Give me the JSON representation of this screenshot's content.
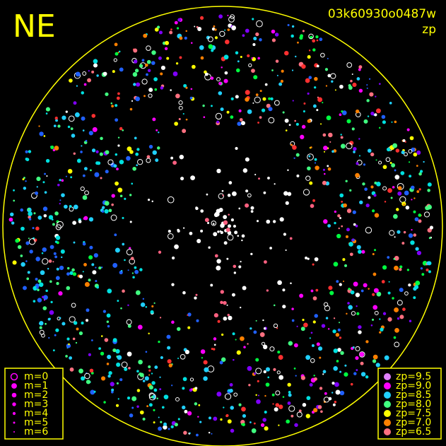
{
  "header": {
    "direction": "NE",
    "frame_id": "03k60930o0487w",
    "mode": "zp"
  },
  "legend_magnitude": {
    "labels": [
      "m=0",
      "m=1",
      "m=2",
      "m=3",
      "m=4",
      "m=5",
      "m=6"
    ],
    "color": "#ff00ff"
  },
  "legend_zp": {
    "items": [
      {
        "label": "zp=9.5",
        "color": "#e080ff"
      },
      {
        "label": "zp=9.0",
        "color": "#ff00ff"
      },
      {
        "label": "zp=8.5",
        "color": "#20d0ff"
      },
      {
        "label": "zp=8.0",
        "color": "#40ff80"
      },
      {
        "label": "zp=7.5",
        "color": "#ffff00"
      },
      {
        "label": "zp=7.0",
        "color": "#ff8000"
      },
      {
        "label": "zp=6.5",
        "color": "#ff7080"
      }
    ]
  },
  "frame_color": "#ffff00"
}
